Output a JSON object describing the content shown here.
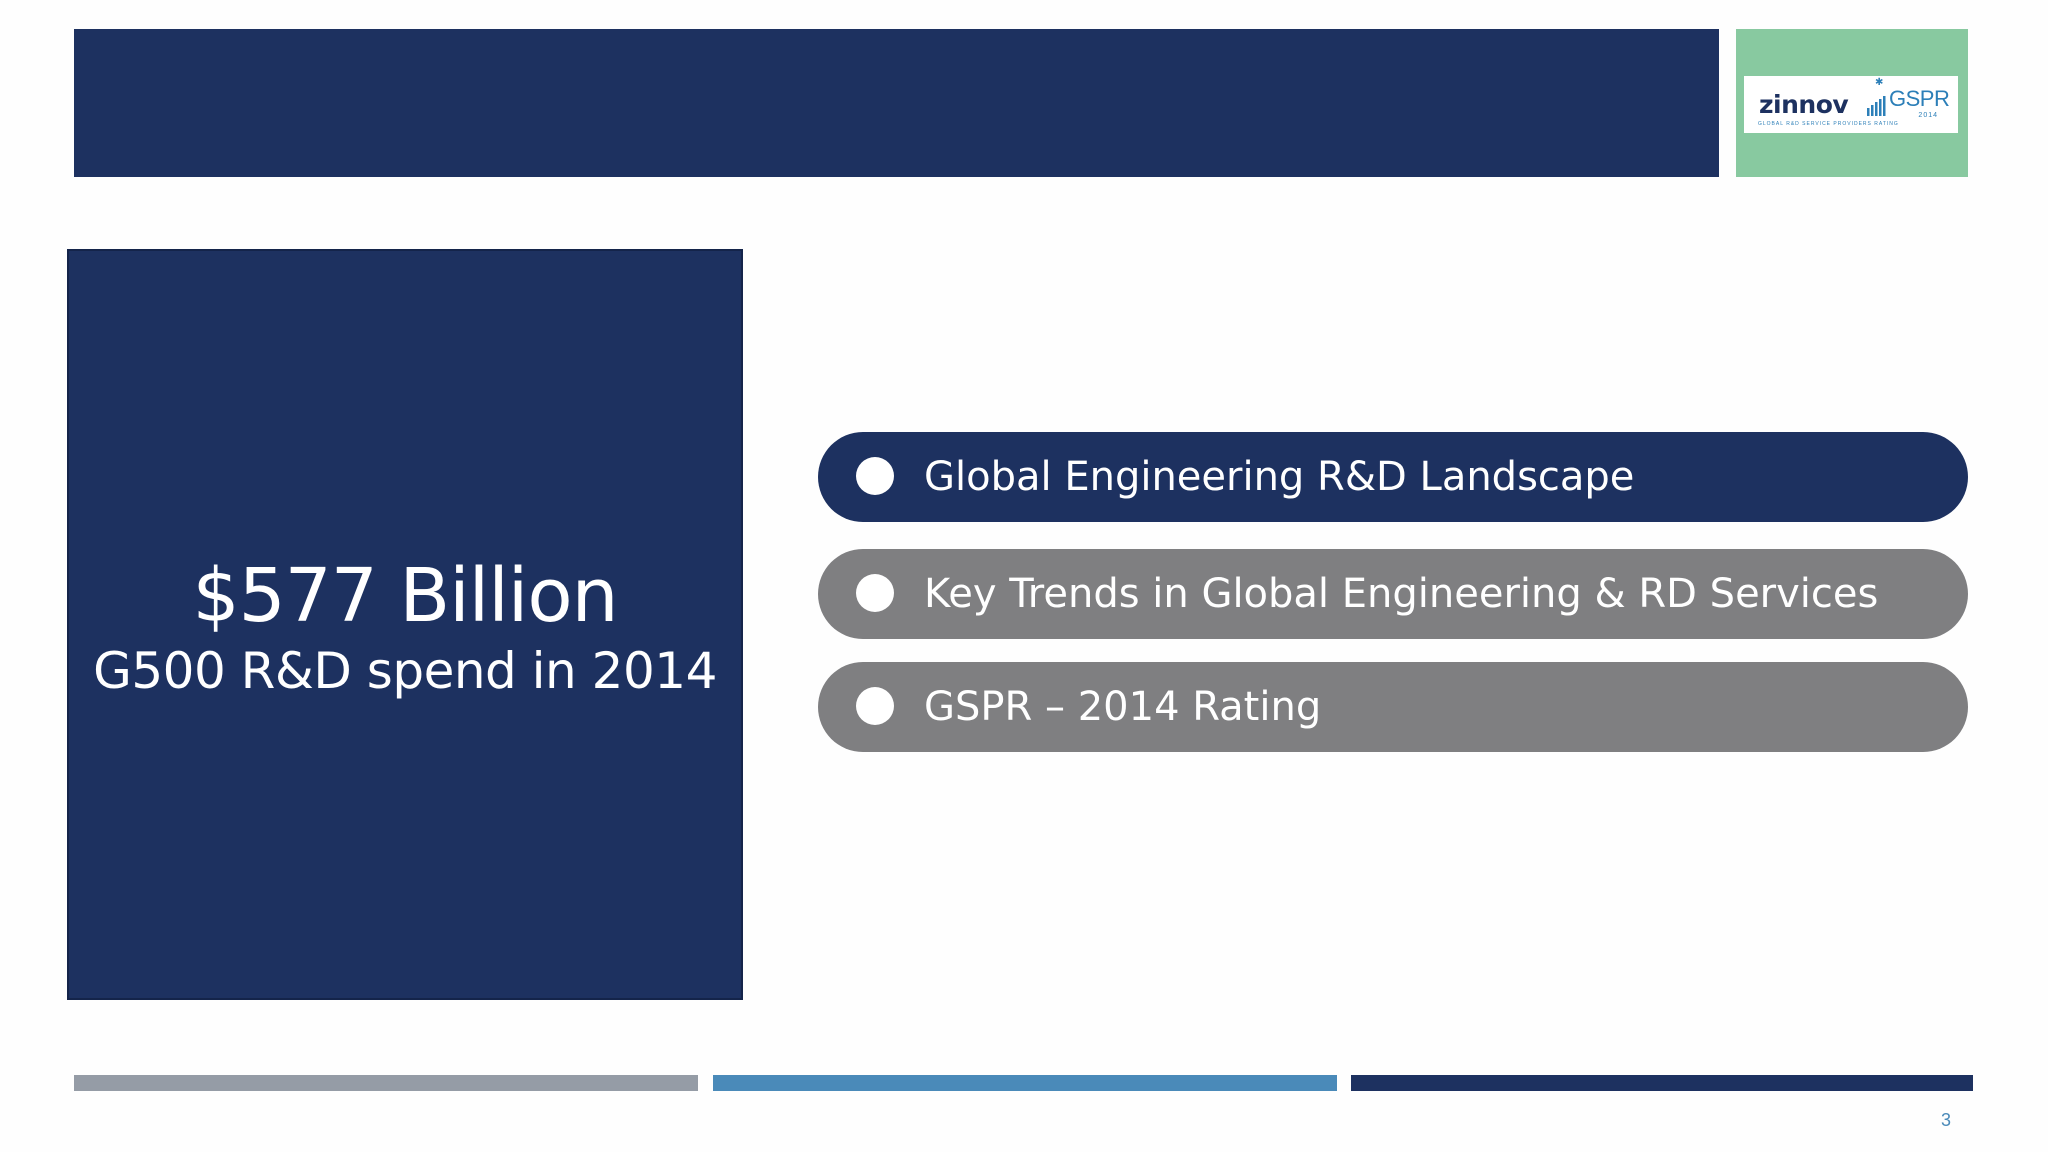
{
  "header": {
    "logo": {
      "brand": "zinnov",
      "product": "GSPR",
      "year": "2014",
      "tagline": "GLOBAL R&D SERVICE PROVIDERS RATING"
    }
  },
  "stat": {
    "value": "$577 Billion",
    "caption": "G500 R&D spend in 2014"
  },
  "agenda": {
    "items": [
      {
        "label": "Global Engineering R&D Landscape",
        "state": "active"
      },
      {
        "label": "Key Trends in Global Engineering & RD Services",
        "state": "inactive"
      },
      {
        "label": "GSPR – 2014 Rating",
        "state": "inactive"
      }
    ]
  },
  "footer": {
    "page_number": "3"
  },
  "colors": {
    "navy": "#1d3160",
    "grey": "#7f7f81",
    "mint": "#88c9a0",
    "steel_blue": "#4a8ab9",
    "light_grey": "#959ca6"
  }
}
